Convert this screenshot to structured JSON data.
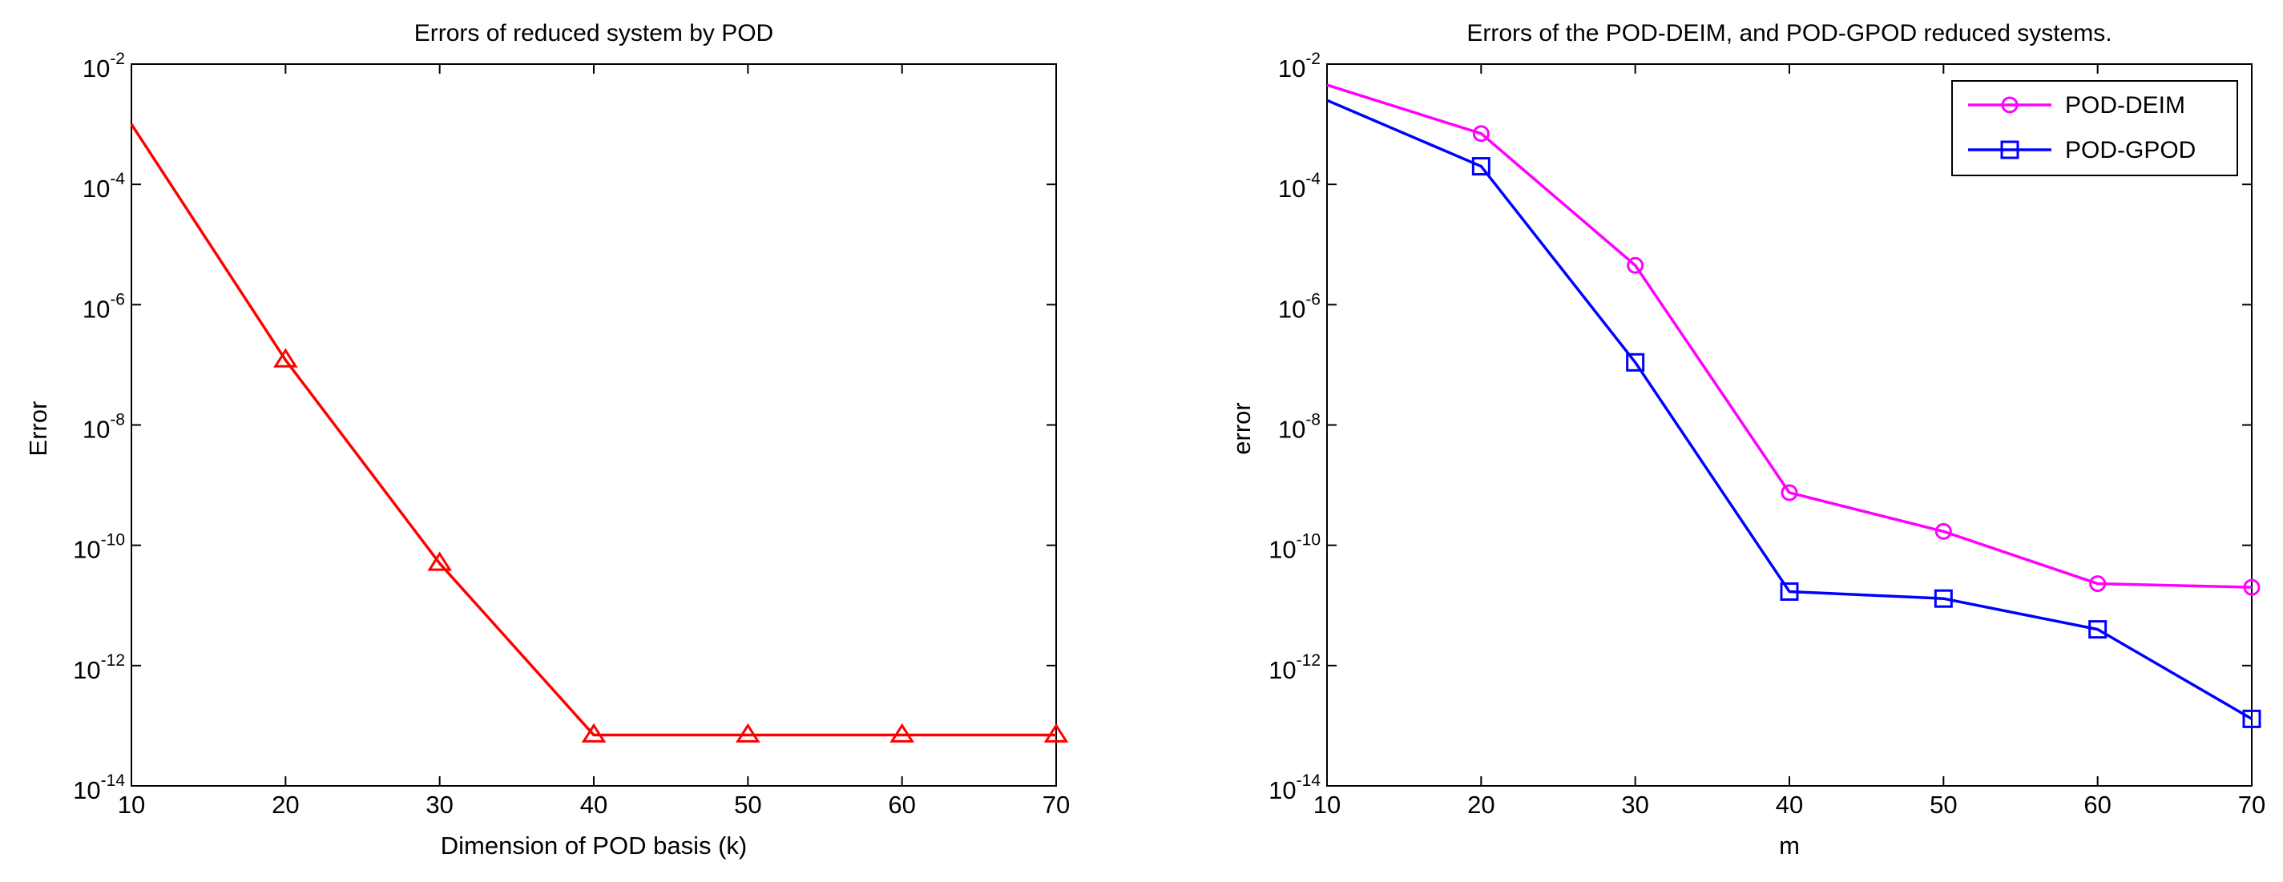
{
  "chart_data": [
    {
      "type": "line",
      "title": "Errors of reduced system by POD",
      "xlabel": "Dimension of POD basis (k)",
      "ylabel": "Error",
      "xscale": "linear",
      "yscale": "log",
      "xlim": [
        10,
        70
      ],
      "ylim": [
        1e-14,
        0.01
      ],
      "xticks": [
        10,
        20,
        30,
        40,
        50,
        60,
        70
      ],
      "xtick_labels": [
        "10",
        "20",
        "30",
        "40",
        "50",
        "60",
        "70"
      ],
      "ytick_exponents": [
        -14,
        -12,
        -10,
        -8,
        -6,
        -4,
        -2
      ],
      "ytick_base": "10",
      "grid": false,
      "legend": null,
      "series": [
        {
          "name": "POD",
          "color": "#ff0000",
          "marker": "triangle",
          "x": [
            10,
            20,
            30,
            40,
            50,
            60,
            70
          ],
          "y": [
            0.001,
            1.2e-07,
            5e-11,
            7e-14,
            7e-14,
            7e-14,
            7e-14
          ],
          "marker_from_index": 1
        }
      ]
    },
    {
      "type": "line",
      "title": "Errors of the POD-DEIM, and POD-GPOD reduced systems.",
      "xlabel": "m",
      "ylabel": "error",
      "xscale": "linear",
      "yscale": "log",
      "xlim": [
        10,
        70
      ],
      "ylim": [
        1e-14,
        0.01
      ],
      "xticks": [
        10,
        20,
        30,
        40,
        50,
        60,
        70
      ],
      "xtick_labels": [
        "10",
        "20",
        "30",
        "40",
        "50",
        "60",
        "70"
      ],
      "ytick_exponents": [
        -14,
        -12,
        -10,
        -8,
        -6,
        -4,
        -2
      ],
      "ytick_base": "10",
      "grid": false,
      "legend": "top-right",
      "series": [
        {
          "name": "POD-DEIM",
          "color": "#ff00ff",
          "marker": "circle",
          "x": [
            10,
            20,
            30,
            40,
            50,
            60,
            70
          ],
          "y": [
            0.0045,
            0.0007,
            4.5e-06,
            7.5e-10,
            1.7e-10,
            2.3e-11,
            2e-11
          ],
          "marker_from_index": 1
        },
        {
          "name": "POD-GPOD",
          "color": "#0000ff",
          "marker": "square",
          "x": [
            10,
            20,
            30,
            40,
            50,
            60,
            70
          ],
          "y": [
            0.0025,
            0.0002,
            1.1e-07,
            1.7e-11,
            1.3e-11,
            4e-12,
            1.3e-13
          ],
          "marker_from_index": 1
        }
      ]
    }
  ]
}
